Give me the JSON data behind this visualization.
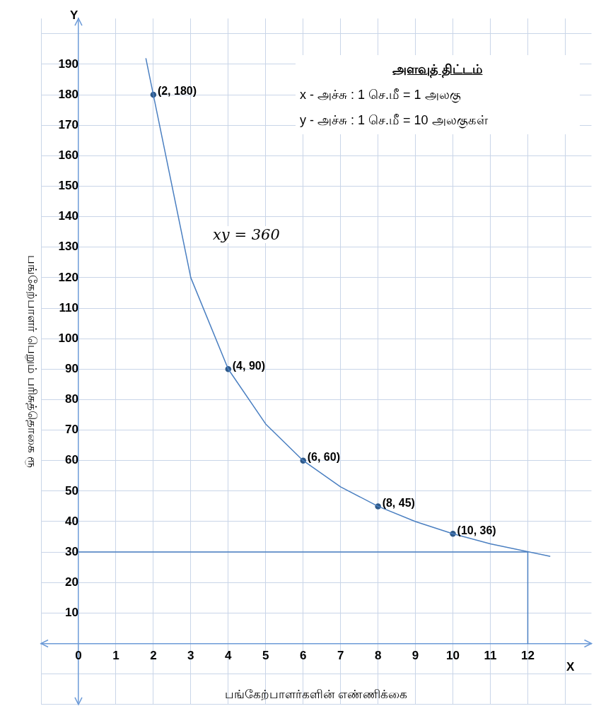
{
  "chart_data": {
    "type": "line",
    "title": "அளவுத் திட்டம்",
    "xlabel": "பங்கேற்பாளர்களின் எண்ணிக்கை",
    "ylabel": "பங்கேற்பாளர் பெறும் பரிசுத்தொகை ரூ",
    "annotations": [
      "x - அச்சு : 1 செ.மீ = 1 அலகு",
      "y - அச்சு : 1 செ.மீ = 10 அலகுகள்",
      "xy = 360",
      "X",
      "Y"
    ],
    "series": [
      {
        "color": "#4a7fc1",
        "marker": "none",
        "x": [
          1.8,
          2,
          3,
          4,
          5,
          6,
          7,
          8,
          9,
          10,
          11,
          12.6
        ],
        "values": [
          192,
          180,
          120,
          90,
          72,
          60,
          51.4,
          45,
          40,
          36,
          32.7,
          28.6
        ]
      },
      {
        "type": "scatter",
        "color": "#2f5a8a",
        "marker": "circle",
        "x": [
          2,
          4,
          6,
          8,
          10
        ],
        "values": [
          180,
          90,
          60,
          45,
          36
        ],
        "value_labels": [
          "(2, 180)",
          "(4, 90)",
          "(6, 60)",
          "(8, 45)",
          "(10, 36)"
        ]
      },
      {
        "color": "#4a7fc1",
        "marker": "none",
        "x": [
          0,
          12,
          12
        ],
        "values": [
          30,
          30,
          0
        ]
      }
    ],
    "xlim": [
      -1,
      13.7
    ],
    "ylim": [
      -20,
      205
    ],
    "xticks": [
      {
        "value": -1,
        "label": null
      },
      0,
      1,
      2,
      3,
      4,
      5,
      6,
      7,
      8,
      9,
      10,
      11,
      12,
      {
        "value": 13,
        "label": null
      }
    ],
    "yticks": [
      {
        "value": -20,
        "label": null
      },
      {
        "value": -10,
        "label": null
      },
      10,
      20,
      30,
      40,
      50,
      60,
      70,
      80,
      90,
      100,
      110,
      120,
      130,
      140,
      150,
      160,
      170,
      180,
      190,
      {
        "value": 200,
        "label": null
      }
    ],
    "grid": true,
    "legend": false,
    "line_style": "solid"
  }
}
